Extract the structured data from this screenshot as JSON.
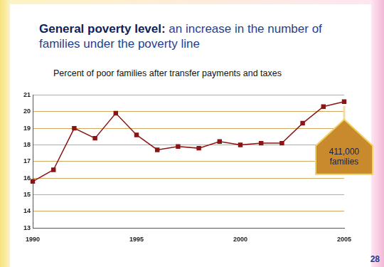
{
  "chart_data": {
    "type": "line",
    "title": "General poverty level:",
    "subtitle": "an increase in the number of families under the poverty line",
    "y_label": "Percent of poor families after transfer payments and taxes",
    "x": [
      1990,
      1991,
      1992,
      1993,
      1994,
      1995,
      1996,
      1997,
      1998,
      1999,
      2000,
      2001,
      2002,
      2003,
      2004,
      2005
    ],
    "values": [
      15.8,
      16.5,
      19.0,
      18.4,
      19.9,
      18.6,
      17.7,
      17.9,
      17.8,
      18.2,
      18.0,
      18.1,
      18.1,
      19.3,
      20.3,
      20.6
    ],
    "color": "#8b1414",
    "marker": "square",
    "line_style": "solid",
    "xlim": [
      1990,
      2005
    ],
    "xticks": [
      1990,
      1995,
      2000,
      2005
    ],
    "ylim": [
      13,
      21
    ],
    "yticks": [
      13,
      14,
      15,
      16,
      17,
      18,
      19,
      20,
      21
    ],
    "grid": true,
    "annotation": "411,000 families",
    "page_number": "28"
  }
}
